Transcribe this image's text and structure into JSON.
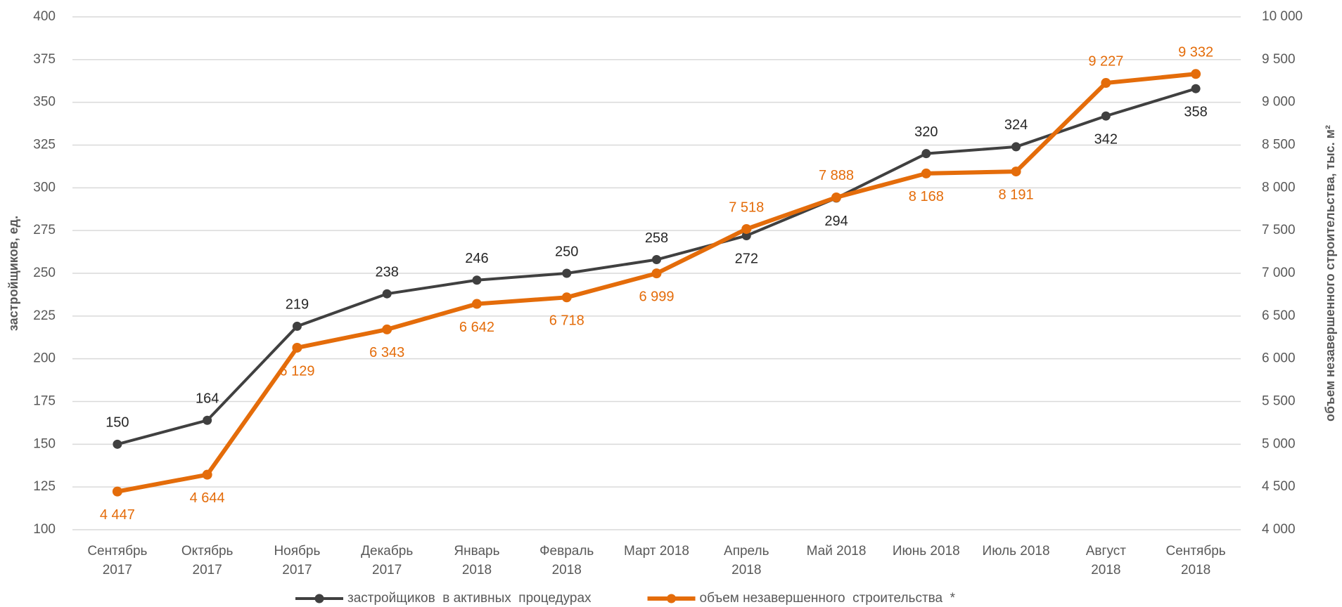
{
  "chart_data": {
    "type": "line",
    "categories": [
      "Сентябрь\n2017",
      "Октябрь\n2017",
      "Ноябрь\n2017",
      "Декабрь\n2017",
      "Январь\n2018",
      "Февраль\n2018",
      "Март 2018",
      "Апрель\n2018",
      "Май 2018",
      "Июнь  2018",
      "Июль  2018",
      "Август\n2018",
      "Сентябрь\n2018"
    ],
    "ylabel": "застройщиков, ед.",
    "y2label": "объем незавершенного  строительства, тыс. м²",
    "ylim": [
      100,
      400
    ],
    "yticks": [
      100,
      125,
      150,
      175,
      200,
      225,
      250,
      275,
      300,
      325,
      350,
      375,
      400
    ],
    "y2lim": [
      4000,
      10000
    ],
    "y2ticks": [
      {
        "value": 4000,
        "label": "4 000"
      },
      {
        "value": 4500,
        "label": "4 500"
      },
      {
        "value": 5000,
        "label": "5 000"
      },
      {
        "value": 5500,
        "label": "5 500"
      },
      {
        "value": 6000,
        "label": "6 000"
      },
      {
        "value": 6500,
        "label": "6 500"
      },
      {
        "value": 7000,
        "label": "7 000"
      },
      {
        "value": 7500,
        "label": "7 500"
      },
      {
        "value": 8000,
        "label": "8 000"
      },
      {
        "value": 8500,
        "label": "8 500"
      },
      {
        "value": 9000,
        "label": "9 000"
      },
      {
        "value": 9500,
        "label": "9 500"
      },
      {
        "value": 10000,
        "label": "10 000"
      }
    ],
    "grid": true,
    "legend": "bottom",
    "series": [
      {
        "name": "застройщиков  в активных  процедурах",
        "color": "#404040",
        "values": [
          150,
          164,
          219,
          238,
          246,
          250,
          258,
          272,
          294,
          320,
          324,
          342,
          358
        ]
      },
      {
        "name": "объем незавершенного  строительства  *",
        "color": "#e46c0a",
        "axis": "y2",
        "values": [
          4447,
          4644,
          6129,
          6343,
          6642,
          6718,
          6999,
          7518,
          7888,
          8168,
          8191,
          9227,
          9332
        ],
        "value_labels": [
          "4 447",
          "4 644",
          "6 129",
          "6 343",
          "6 642",
          "6 718",
          "6 999",
          "7 518",
          "7 888",
          "8 168",
          "8 191",
          "9 227",
          "9 332"
        ]
      }
    ]
  }
}
